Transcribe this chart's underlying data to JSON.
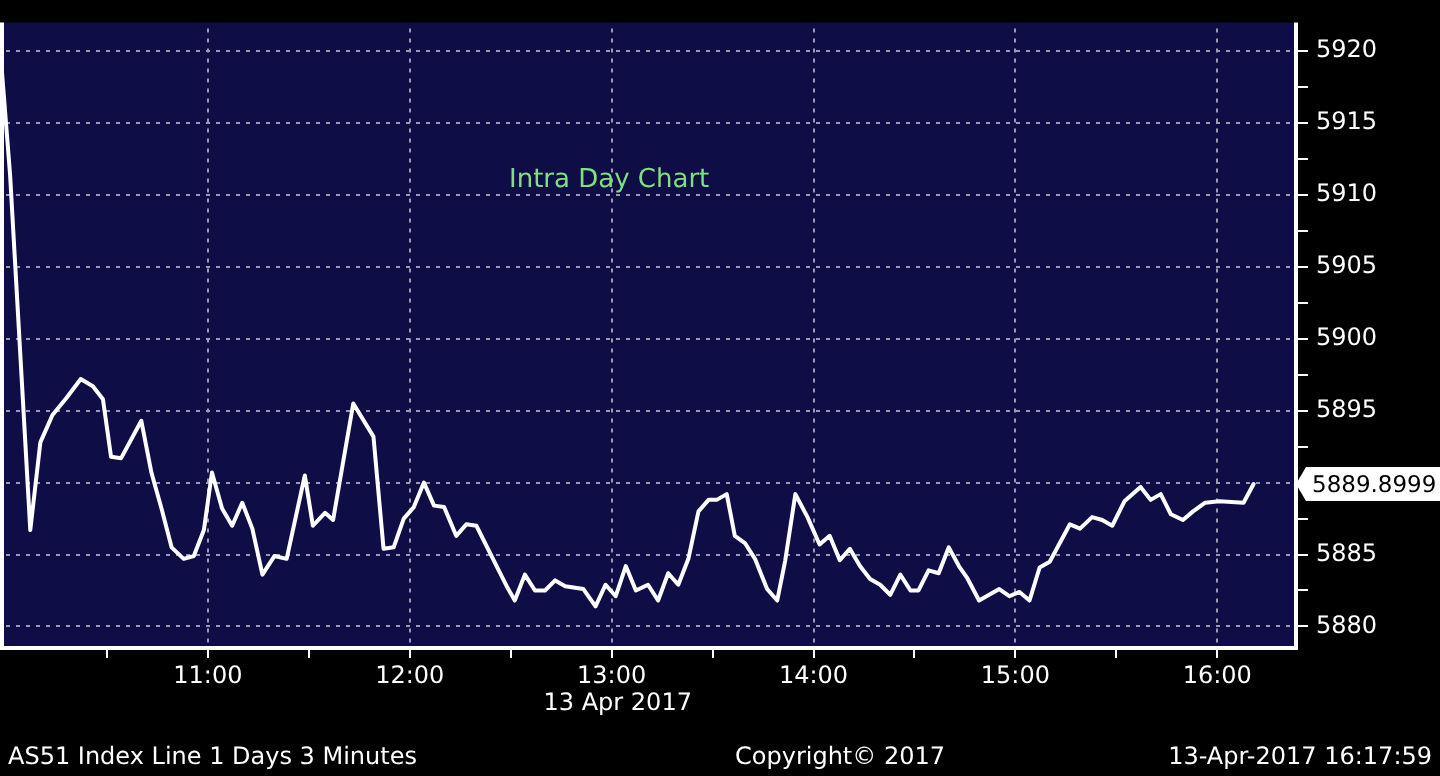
{
  "chart_data": {
    "type": "line",
    "title": "Intra Day Chart",
    "xlabel": "13 Apr 2017",
    "x": [
      9.98,
      10.02,
      10.12,
      10.17,
      10.23,
      10.3,
      10.37,
      10.43,
      10.48,
      10.52,
      10.57,
      10.67,
      10.72,
      10.77,
      10.82,
      10.88,
      10.93,
      10.98,
      11.02,
      11.07,
      11.12,
      11.17,
      11.22,
      11.27,
      11.33,
      11.39,
      11.48,
      11.52,
      11.58,
      11.62,
      11.72,
      11.82,
      11.87,
      11.92,
      11.97,
      12.02,
      12.07,
      12.12,
      12.17,
      12.23,
      12.28,
      12.33,
      12.43,
      12.48,
      12.52,
      12.57,
      12.62,
      12.67,
      12.72,
      12.77,
      12.86,
      12.92,
      12.97,
      13.02,
      13.07,
      13.12,
      13.18,
      13.23,
      13.28,
      13.33,
      13.38,
      13.43,
      13.48,
      13.52,
      13.57,
      13.61,
      13.66,
      13.71,
      13.77,
      13.82,
      13.86,
      13.91,
      13.97,
      14.03,
      14.08,
      14.13,
      14.18,
      14.23,
      14.28,
      14.33,
      14.38,
      14.43,
      14.48,
      14.52,
      14.57,
      14.62,
      14.67,
      14.72,
      14.76,
      14.82,
      14.87,
      14.92,
      14.97,
      15.02,
      15.07,
      15.12,
      15.17,
      15.27,
      15.32,
      15.38,
      15.43,
      15.48,
      15.54,
      15.62,
      15.67,
      15.72,
      15.77,
      15.83,
      15.88,
      15.94,
      16.01,
      16.13,
      16.18
    ],
    "series": [
      {
        "color": "#ffffff",
        "values": [
          5918.5,
          5911.4,
          5886.7,
          5892.8,
          5894.7,
          5895.9,
          5897.2,
          5896.7,
          5895.8,
          5891.8,
          5891.7,
          5894.3,
          5890.7,
          5888.2,
          5885.5,
          5884.7,
          5884.9,
          5886.7,
          5890.7,
          5888.2,
          5887.0,
          5888.6,
          5886.8,
          5883.6,
          5884.9,
          5884.7,
          5890.5,
          5887.0,
          5887.9,
          5887.4,
          5895.5,
          5893.2,
          5885.4,
          5885.5,
          5887.5,
          5888.3,
          5890.0,
          5888.4,
          5888.3,
          5886.3,
          5887.1,
          5887.0,
          5884.2,
          5882.8,
          5881.8,
          5883.6,
          5882.5,
          5882.5,
          5883.2,
          5882.8,
          5882.6,
          5881.4,
          5882.9,
          5882.1,
          5884.2,
          5882.5,
          5882.9,
          5881.8,
          5883.7,
          5882.9,
          5884.7,
          5888.0,
          5888.8,
          5888.8,
          5889.2,
          5886.3,
          5885.8,
          5884.7,
          5882.6,
          5881.8,
          5884.6,
          5889.2,
          5887.6,
          5885.7,
          5886.3,
          5884.6,
          5885.4,
          5884.2,
          5883.3,
          5882.9,
          5882.2,
          5883.6,
          5882.5,
          5882.5,
          5883.9,
          5883.7,
          5885.5,
          5884.2,
          5883.4,
          5881.8,
          5882.2,
          5882.6,
          5882.1,
          5882.4,
          5881.8,
          5884.1,
          5884.5,
          5887.1,
          5886.8,
          5887.6,
          5887.4,
          5887.0,
          5888.7,
          5889.7,
          5888.8,
          5889.2,
          5887.8,
          5887.4,
          5888.0,
          5888.6,
          5888.7,
          5888.6,
          5889.8999
        ]
      }
    ],
    "xlim": [
      9.97,
      16.39
    ],
    "xticks": [
      {
        "value": 10.5,
        "label": null
      },
      {
        "value": 11,
        "label": "11:00"
      },
      {
        "value": 11.5,
        "label": null
      },
      {
        "value": 12,
        "label": "12:00"
      },
      {
        "value": 12.5,
        "label": null
      },
      {
        "value": 13,
        "label": "13:00"
      },
      {
        "value": 13.5,
        "label": null
      },
      {
        "value": 14,
        "label": "14:00"
      },
      {
        "value": 14.5,
        "label": null
      },
      {
        "value": 15,
        "label": "15:00"
      },
      {
        "value": 15.5,
        "label": null
      },
      {
        "value": 16,
        "label": "16:00"
      }
    ],
    "ylim": [
      5878.5,
      5922
    ],
    "yticks": [
      5880,
      {
        "value": 5882.5,
        "label": null
      },
      5885,
      {
        "value": 5887.5,
        "label": null
      },
      {
        "value": 5890,
        "label": null
      },
      {
        "value": 5892.5,
        "label": null
      },
      5895,
      {
        "value": 5897.5,
        "label": null
      },
      5900,
      {
        "value": 5902.5,
        "label": null
      },
      5905,
      {
        "value": 5907.5,
        "label": null
      },
      5910,
      {
        "value": 5912.5,
        "label": null
      },
      5915,
      {
        "value": 5917.5,
        "label": null
      },
      5920
    ],
    "grid": true,
    "legend": false,
    "marker": "none",
    "line_style": "solid",
    "annotations": [
      {
        "text": "5889.8999",
        "x": 16.18,
        "y": 5889.8999
      },
      "AS51 Index Line 1 Days 3 Minutes",
      "Copyright© 2017",
      "13-Apr-2017 16:17:59"
    ]
  }
}
